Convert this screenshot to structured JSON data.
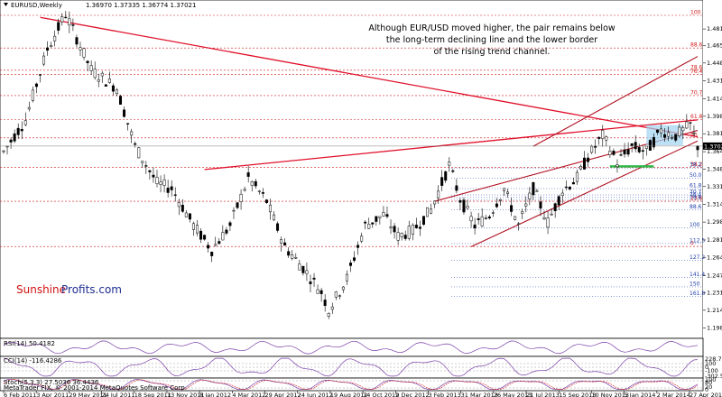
{
  "header": {
    "symbol": "EURUSD,Weekly",
    "ohlc": "1.36970 1.37335 1.36774 1.37021"
  },
  "annotation": {
    "lines": [
      "Although EUR/USD moved higher, the pair remains below",
      "the long-term declining line and the lower border",
      "of the rising trend channel."
    ]
  },
  "brand": {
    "part1": "Sunshine",
    "part2": "Profits.com"
  },
  "current_price": "1.37021",
  "colors": {
    "bull": "#ffffff",
    "bear": "#000000",
    "trend_red": "#e0102a",
    "channel": "#b01020",
    "fib_red": "#d21a1a",
    "fib_blue": "#1f3fa8",
    "highlight_box": "#9fd3ef",
    "support_green": "#2fb84a",
    "osc_purple": "#7a3fa8",
    "osc_red": "#d21a1a"
  },
  "chart_data": [
    {
      "type": "candlestick",
      "title": "EURUSD,Weekly",
      "price_ticks": [
        "1.48100",
        "1.46510",
        "1.44880",
        "1.43190",
        "1.41490",
        "1.39840",
        "1.38190",
        "1.36490",
        "1.34840",
        "1.33190",
        "1.31490",
        "1.29830",
        "1.28140",
        "1.26490",
        "1.24780",
        "1.23130",
        "1.21490",
        "1.19800"
      ],
      "ylim": [
        1.19,
        1.505
      ],
      "date_labels": [
        "6 Feb 2011",
        "3 Apr 2011",
        "29 May 2011",
        "24 Jul 2011",
        "18 Sep 2011",
        "13 Nov 2011",
        "8 Jan 2012",
        "4 Mar 2012",
        "29 Apr 2012",
        "24 Jun 2012",
        "19 Aug 2012",
        "14 Oct 2012",
        "9 Dec 2012",
        "3 Feb 2013",
        "31 Mar 2013",
        "26 May 2013",
        "21 Jul 2013",
        "15 Sep 2013",
        "10 Nov 2013",
        "5 Jan 2014",
        "2 Mar 2014",
        "27 Apr 2014"
      ],
      "anchors": [
        {
          "i": 0,
          "p": 1.365
        },
        {
          "i": 6,
          "p": 1.395
        },
        {
          "i": 12,
          "p": 1.462
        },
        {
          "i": 17,
          "p": 1.495
        },
        {
          "i": 24,
          "p": 1.442
        },
        {
          "i": 31,
          "p": 1.425
        },
        {
          "i": 36,
          "p": 1.37
        },
        {
          "i": 42,
          "p": 1.335
        },
        {
          "i": 46,
          "p": 1.33
        },
        {
          "i": 52,
          "p": 1.295
        },
        {
          "i": 57,
          "p": 1.272
        },
        {
          "i": 62,
          "p": 1.295
        },
        {
          "i": 67,
          "p": 1.34
        },
        {
          "i": 72,
          "p": 1.318
        },
        {
          "i": 77,
          "p": 1.275
        },
        {
          "i": 82,
          "p": 1.255
        },
        {
          "i": 87,
          "p": 1.232
        },
        {
          "i": 89,
          "p": 1.215
        },
        {
          "i": 94,
          "p": 1.245
        },
        {
          "i": 99,
          "p": 1.295
        },
        {
          "i": 104,
          "p": 1.305
        },
        {
          "i": 108,
          "p": 1.285
        },
        {
          "i": 112,
          "p": 1.29
        },
        {
          "i": 117,
          "p": 1.31
        },
        {
          "i": 122,
          "p": 1.352
        },
        {
          "i": 125,
          "p": 1.32
        },
        {
          "i": 129,
          "p": 1.295
        },
        {
          "i": 133,
          "p": 1.305
        },
        {
          "i": 137,
          "p": 1.33
        },
        {
          "i": 141,
          "p": 1.295
        },
        {
          "i": 145,
          "p": 1.33
        },
        {
          "i": 149,
          "p": 1.298
        },
        {
          "i": 153,
          "p": 1.328
        },
        {
          "i": 157,
          "p": 1.34
        },
        {
          "i": 160,
          "p": 1.36
        },
        {
          "i": 164,
          "p": 1.38
        },
        {
          "i": 168,
          "p": 1.355
        },
        {
          "i": 172,
          "p": 1.37
        },
        {
          "i": 176,
          "p": 1.365
        },
        {
          "i": 180,
          "p": 1.385
        },
        {
          "i": 184,
          "p": 1.38
        },
        {
          "i": 188,
          "p": 1.39
        },
        {
          "i": 190,
          "p": 1.37
        }
      ],
      "candle_count": 191,
      "fib_levels_red": [
        {
          "label": "100",
          "p": 1.4939
        },
        {
          "label": "88.6",
          "p": 1.463
        },
        {
          "label": "78.6",
          "p": 1.442
        },
        {
          "label": "76.4",
          "p": 1.438
        },
        {
          "label": "70.7",
          "p": 1.418
        },
        {
          "label": "61.8",
          "p": 1.3952
        },
        {
          "label": "50",
          "p": 1.378
        },
        {
          "label": "38.2",
          "p": 1.35
        },
        {
          "label": "23.6",
          "p": 1.318
        },
        {
          "label": "0",
          "p": 1.2752
        }
      ],
      "fib_levels_blue": [
        {
          "label": "38.2",
          "p": 1.3495
        },
        {
          "label": "50.0",
          "p": 1.34
        },
        {
          "label": "61.8",
          "p": 1.33
        },
        {
          "label": "70.7",
          "p": 1.324
        },
        {
          "label": "76.4",
          "p": 1.3215
        },
        {
          "label": "78.6",
          "p": 1.319
        },
        {
          "label": "88.6",
          "p": 1.31
        },
        {
          "label": "100",
          "p": 1.293
        },
        {
          "label": "112.5",
          "p": 1.278
        },
        {
          "label": "127.2",
          "p": 1.262
        },
        {
          "label": "141.4",
          "p": 1.246
        },
        {
          "label": "150",
          "p": 1.237
        },
        {
          "label": "161.8",
          "p": 1.228
        }
      ]
    },
    {
      "type": "line",
      "title": "RSI(14) 50.4182",
      "ticks": []
    },
    {
      "type": "line",
      "title": "CCI(14) -116.4286",
      "ticks": [
        "228.733",
        "100",
        "0",
        "-100",
        "-302.571"
      ]
    },
    {
      "type": "line",
      "title": "Stoch(5,3,3) 27.5036 36.4436",
      "ticks": [
        "100",
        "80",
        "20",
        "0"
      ]
    }
  ],
  "footer": {
    "copyright": "MetaTrader FIX, © 2001-2014 MetaQuotes Software Corp."
  }
}
